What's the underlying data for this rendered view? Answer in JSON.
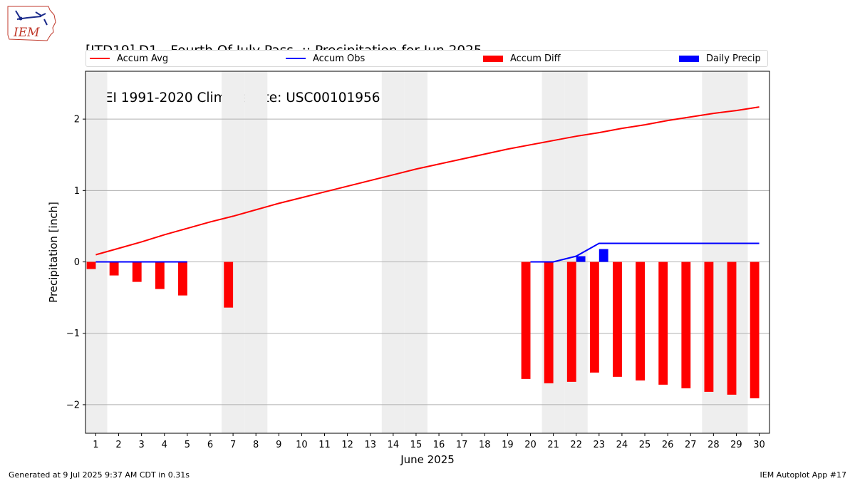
{
  "header": {
    "title_line1": "[ITD19] D1 - Fourth Of July Pass  :: Precipitation for Jun 2025",
    "title_line2": "NCEI 1991-2020 Climate Site: USC00101956",
    "logo_text": "IEM"
  },
  "legend": {
    "accum_avg": "Accum Avg",
    "accum_obs": "Accum Obs",
    "accum_diff": "Accum Diff",
    "daily_precip": "Daily Precip"
  },
  "footer": {
    "generated": "Generated at 9 Jul 2025 9:37 AM CDT in 0.31s",
    "app": "IEM Autoplot App #17"
  },
  "chart_data": {
    "type": "bar",
    "xlabel": "June 2025",
    "ylabel": "Precipitation [inch]",
    "ylim": [
      -2.4,
      2.67
    ],
    "xlim": [
      0.55,
      30.45
    ],
    "grid": "horizontal",
    "legend_position": "top",
    "yticks": [
      {
        "value": -2,
        "label": "−2"
      },
      {
        "value": -1,
        "label": "−1"
      },
      {
        "value": 0,
        "label": "0"
      },
      {
        "value": 1,
        "label": "1"
      },
      {
        "value": 2,
        "label": "2"
      }
    ],
    "days": [
      1,
      2,
      3,
      4,
      5,
      6,
      7,
      8,
      9,
      10,
      11,
      12,
      13,
      14,
      15,
      16,
      17,
      18,
      19,
      20,
      21,
      22,
      23,
      24,
      25,
      26,
      27,
      28,
      29,
      30
    ],
    "weekend_days": [
      1,
      7,
      8,
      14,
      15,
      21,
      22,
      28,
      29
    ],
    "colors": {
      "avg": "#ff0000",
      "obs": "#0000ff",
      "diff": "#ff0000",
      "daily": "#0000ff",
      "weekend": "#eeeeee",
      "grid": "#b0b0b0"
    },
    "series": [
      {
        "name": "Accum Avg",
        "type": "line",
        "x": [
          1,
          2,
          3,
          4,
          5,
          6,
          7,
          8,
          9,
          10,
          11,
          12,
          13,
          14,
          15,
          16,
          17,
          18,
          19,
          20,
          21,
          22,
          23,
          24,
          25,
          26,
          27,
          28,
          29,
          30
        ],
        "values": [
          0.1,
          0.19,
          0.28,
          0.38,
          0.47,
          0.56,
          0.64,
          0.73,
          0.82,
          0.9,
          0.98,
          1.06,
          1.14,
          1.22,
          1.3,
          1.37,
          1.44,
          1.51,
          1.58,
          1.64,
          1.7,
          1.76,
          1.81,
          1.87,
          1.92,
          1.98,
          2.03,
          2.08,
          2.12,
          2.17
        ]
      },
      {
        "name": "Accum Obs",
        "type": "line",
        "segments": [
          {
            "x": [
              1,
              2,
              3,
              4,
              5
            ],
            "values": [
              0,
              0,
              0,
              0,
              0
            ]
          },
          {
            "x": [
              20,
              21,
              22,
              23,
              24,
              25,
              26,
              27,
              28,
              29,
              30
            ],
            "values": [
              0,
              0,
              0.08,
              0.26,
              0.26,
              0.26,
              0.26,
              0.26,
              0.26,
              0.26,
              0.26
            ]
          }
        ]
      },
      {
        "name": "Accum Diff",
        "type": "bar",
        "x": [
          1,
          2,
          3,
          4,
          5,
          7,
          20,
          21,
          22,
          23,
          24,
          25,
          26,
          27,
          28,
          29,
          30
        ],
        "values": [
          -0.1,
          -0.19,
          -0.28,
          -0.38,
          -0.47,
          -0.64,
          -1.64,
          -1.7,
          -1.68,
          -1.55,
          -1.61,
          -1.66,
          -1.72,
          -1.77,
          -1.82,
          -1.86,
          -1.91
        ]
      },
      {
        "name": "Daily Precip",
        "type": "bar",
        "x": [
          22,
          23
        ],
        "values": [
          0.08,
          0.18
        ]
      }
    ]
  }
}
